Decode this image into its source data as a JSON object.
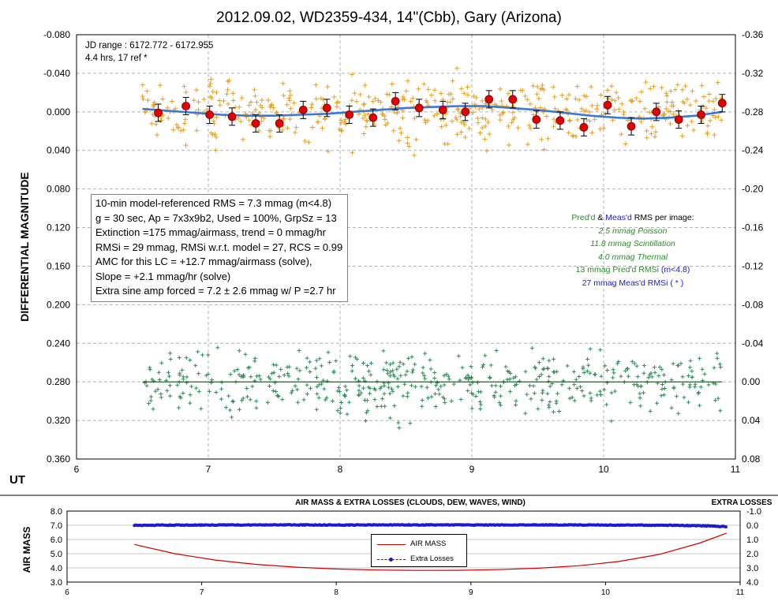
{
  "chart_data": [
    {
      "type": "scatter",
      "title": "2012.09.02, WD2359-434, 14\"(Cbb), Gary (Arizona)",
      "ylabel": "DIFFERENTIAL MAGNITUDE",
      "xlabel": "UT",
      "xlim": [
        6,
        11
      ],
      "xticks": [
        "6",
        "7",
        "8",
        "9",
        "10",
        "11"
      ],
      "ylim": [
        -0.08,
        0.36
      ],
      "y_inverted": true,
      "yticks": [
        "-0.080",
        "-0.040",
        "0.000",
        "0.040",
        "0.080",
        "0.120",
        "0.160",
        "0.200",
        "0.240",
        "0.280",
        "0.320",
        "0.360"
      ],
      "y2lim": [
        -0.36,
        0.08
      ],
      "y2ticks": [
        "-0.36",
        "-0.32",
        "-0.28",
        "-0.24",
        "-0.20",
        "-0.16",
        "-0.12",
        "-0.08",
        "-0.04",
        "0.00",
        "0.04",
        "0.08"
      ],
      "grid": true,
      "annotations": {
        "jd_range": "JD range :  6172.772  - 6172.955",
        "duration": "4.4 hrs, 17 ref *"
      },
      "stats_box": [
        "10-min model-referenced RMS = 7.3 mmag (m<4.8)",
        "g = 30 sec, Ap = 7x3x9b2, Used = 100%, GrpSz = 13",
        "Extinction =175  mmag/airmass, trend = 0 mmag/hr",
        "RMSi = 29 mmag, RMSi w.r.t. model = 27, RCS = 0.99",
        "AMC for this LC = +12.7 mmag/airmass (solve),",
        "Slope = +2.1 mmag/hr (solve)",
        "Extra sine amp forced = 7.2 ± 2.6 mmag w/ P =2.7 hr"
      ],
      "rms_box": {
        "heading_a": "Pred'd",
        "heading_amp": " & ",
        "heading_b": "Meas'd",
        "heading_rest": " RMS per image:",
        "poisson": "2.5 mmag Poisson",
        "scintillation": "11.8 mmag Scintillation",
        "thermal": "4.0 mmag Thermal",
        "predicted": "13 mmag   Pred'd  RMSi",
        "predicted_suffix": " (m<4.8)",
        "measured": "27 mmag   Meas'd RMSi (    *    )"
      },
      "series": [
        {
          "role": "binned_means",
          "color": "#e00000",
          "x": [
            6.62,
            6.83,
            7.01,
            7.18,
            7.36,
            7.54,
            7.72,
            7.9,
            8.07,
            8.25,
            8.42,
            8.6,
            8.78,
            8.95,
            9.13,
            9.31,
            9.49,
            9.67,
            9.85,
            10.03,
            10.21,
            10.4,
            10.57,
            10.74,
            10.9
          ],
          "y": [
            0.001,
            -0.006,
            0.003,
            0.005,
            0.012,
            0.012,
            -0.002,
            -0.004,
            0.003,
            0.006,
            -0.011,
            -0.004,
            -0.002,
            0.0,
            -0.013,
            -0.013,
            0.008,
            0.009,
            0.016,
            -0.007,
            0.015,
            0.0,
            0.008,
            0.003,
            -0.009
          ],
          "err": 0.009
        },
        {
          "role": "model_fit",
          "color": "#3c78d8",
          "type": "line",
          "x": [
            6.5,
            6.7,
            6.9,
            7.1,
            7.3,
            7.5,
            7.7,
            7.9,
            8.1,
            8.3,
            8.5,
            8.7,
            8.9,
            9.1,
            9.3,
            9.5,
            9.7,
            9.9,
            10.1,
            10.3,
            10.5,
            10.7,
            10.9
          ],
          "y": [
            -0.003,
            -0.001,
            0.001,
            0.003,
            0.004,
            0.004,
            0.003,
            0.002,
            0.0,
            -0.002,
            -0.004,
            -0.005,
            -0.006,
            -0.006,
            -0.004,
            -0.002,
            0.001,
            0.004,
            0.006,
            0.007,
            0.006,
            0.004,
            0.0
          ]
        },
        {
          "role": "zero_line_residuals",
          "color": "#1a4d1a",
          "type": "line",
          "x": [
            6.5,
            10.9
          ],
          "y": [
            0.0,
            0.0
          ],
          "axis": "secondary"
        },
        {
          "role": "individual_measurements",
          "color": "#e8a020",
          "marker": "+",
          "n": 520,
          "x_range": [
            6.5,
            10.9
          ],
          "y_spread_rms": 0.029
        },
        {
          "role": "residuals",
          "color": "#2e8b57",
          "marker": "+",
          "axis": "secondary",
          "n": 520,
          "x_range": [
            6.5,
            10.9
          ],
          "y_spread_rms": 0.027
        }
      ]
    },
    {
      "type": "line",
      "title": "AIR MASS & EXTRA LOSSES  (CLOUDS,  DEW, WAVES, WIND)",
      "ylabel": "AIR MASS",
      "y2label": "EXTRA LOSSES",
      "xlim": [
        6,
        11
      ],
      "xticks": [
        "6",
        "7",
        "8",
        "9",
        "10",
        "11"
      ],
      "ylim": [
        3.0,
        8.0
      ],
      "yticks": [
        "8.0",
        "7.0",
        "6.0",
        "5.0",
        "4.0",
        "3.0"
      ],
      "y2lim": [
        -1.0,
        4.0
      ],
      "y2_inverted": true,
      "y2ticks": [
        "-1.0",
        "0.0",
        "1.0",
        "2.0",
        "3.0",
        "4.0"
      ],
      "legend": {
        "placement": "center-bottom"
      },
      "series": [
        {
          "name": "AIR MASS",
          "color": "#d00000",
          "x": [
            6.5,
            6.8,
            7.1,
            7.4,
            7.7,
            8.0,
            8.3,
            8.6,
            8.9,
            9.2,
            9.5,
            9.8,
            10.1,
            10.4,
            10.7,
            10.9
          ],
          "y": [
            5.65,
            5.0,
            4.55,
            4.25,
            4.05,
            3.92,
            3.85,
            3.82,
            3.83,
            3.88,
            3.98,
            4.15,
            4.45,
            4.95,
            5.75,
            6.45
          ]
        },
        {
          "name": "Extra Losses",
          "color": "#1c1ccd",
          "axis": "secondary",
          "x": [
            6.5,
            7.0,
            7.5,
            8.0,
            8.5,
            9.0,
            9.5,
            10.0,
            10.5,
            10.8,
            10.9
          ],
          "y": [
            0.0,
            -0.02,
            -0.03,
            -0.02,
            -0.03,
            -0.02,
            -0.03,
            -0.02,
            0.0,
            0.05,
            0.1
          ]
        }
      ]
    }
  ]
}
